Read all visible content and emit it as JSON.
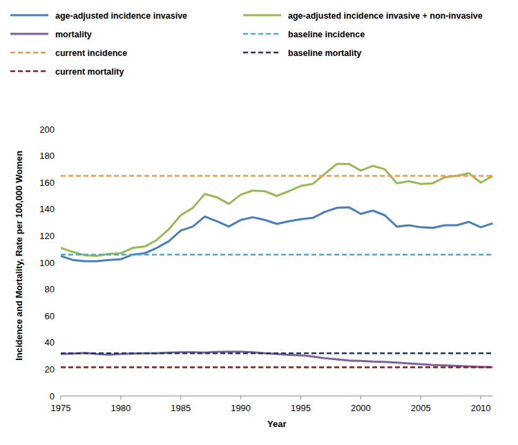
{
  "chart_data": {
    "type": "line",
    "x_label": "Year",
    "y_label": "Incidence and Mortality, Rate per 100,000 Women",
    "x": [
      1975,
      1976,
      1977,
      1978,
      1979,
      1980,
      1981,
      1982,
      1983,
      1984,
      1985,
      1986,
      1987,
      1988,
      1989,
      1990,
      1991,
      1992,
      1993,
      1994,
      1995,
      1996,
      1997,
      1998,
      1999,
      2000,
      2001,
      2002,
      2003,
      2004,
      2005,
      2006,
      2007,
      2008,
      2009,
      2010,
      2011
    ],
    "xlim": [
      1975,
      2011
    ],
    "xticks": [
      1975,
      1980,
      1985,
      1990,
      1995,
      2000,
      2005,
      2010
    ],
    "ylim": [
      0,
      200
    ],
    "yticks": [
      0,
      20,
      40,
      60,
      80,
      100,
      120,
      140,
      160,
      180,
      200
    ],
    "grid": false,
    "legend": "top",
    "series": [
      {
        "name": "age-adjusted incidence invasive",
        "color": "#4a7ebb",
        "line_style": "solid",
        "values": [
          105,
          102,
          101,
          101,
          102,
          102.5,
          106,
          107,
          111,
          116,
          124,
          127,
          134.5,
          131,
          127,
          132,
          134,
          132,
          129,
          131,
          132.5,
          133.5,
          138,
          141,
          141.5,
          136.5,
          139,
          135.5,
          127,
          128,
          126.5,
          126,
          128,
          128,
          130.5,
          126.5,
          129.5
        ]
      },
      {
        "name": "age-adjusted incidence invasive + non-invasive",
        "color": "#98b954",
        "line_style": "solid",
        "values": [
          111,
          108,
          105.5,
          105,
          106.5,
          107,
          111,
          112,
          117,
          125,
          135.5,
          141,
          151.5,
          149,
          144,
          151,
          154,
          153.5,
          150,
          153.5,
          157.5,
          159,
          166.5,
          174,
          174,
          169,
          172.5,
          170,
          159.5,
          161,
          159,
          159.5,
          164,
          165,
          167,
          160,
          165
        ]
      },
      {
        "name": "mortality",
        "color": "#7d60a0",
        "line_style": "solid",
        "values": [
          31.5,
          31.8,
          32.3,
          31.5,
          31,
          31.5,
          31.7,
          32,
          32,
          32.5,
          32.8,
          32.8,
          32.5,
          33,
          33.2,
          33.2,
          32.8,
          32,
          31.5,
          30.8,
          30.5,
          29.5,
          28.3,
          27.5,
          26.5,
          26.3,
          25.8,
          25.5,
          25,
          24.3,
          23.8,
          23.2,
          22.9,
          22.5,
          22.1,
          21.8,
          21.6
        ]
      },
      {
        "name": "baseline incidence",
        "color": "#4bacc6",
        "line_style": "dashed",
        "values": [
          106,
          106,
          106,
          106,
          106,
          106,
          106,
          106,
          106,
          106,
          106,
          106,
          106,
          106,
          106,
          106,
          106,
          106,
          106,
          106,
          106,
          106,
          106,
          106,
          106,
          106,
          106,
          106,
          106,
          106,
          106,
          106,
          106,
          106,
          106,
          106,
          106
        ]
      },
      {
        "name": "current incidence",
        "color": "#f79646",
        "line_style": "dashed",
        "values": [
          165,
          165,
          165,
          165,
          165,
          165,
          165,
          165,
          165,
          165,
          165,
          165,
          165,
          165,
          165,
          165,
          165,
          165,
          165,
          165,
          165,
          165,
          165,
          165,
          165,
          165,
          165,
          165,
          165,
          165,
          165,
          165,
          165,
          165,
          165,
          165,
          165
        ]
      },
      {
        "name": "baseline mortality",
        "color": "#1f3864",
        "line_style": "dashed",
        "values": [
          32,
          32,
          32,
          32,
          32,
          32,
          32,
          32,
          32,
          32,
          32,
          32,
          32,
          32,
          32,
          32,
          32,
          32,
          32,
          32,
          32,
          32,
          32,
          32,
          32,
          32,
          32,
          32,
          32,
          32,
          32,
          32,
          32,
          32,
          32,
          32,
          32
        ]
      },
      {
        "name": "current mortality",
        "color": "#8b1a1a",
        "line_style": "dashed",
        "values": [
          21.5,
          21.5,
          21.5,
          21.5,
          21.5,
          21.5,
          21.5,
          21.5,
          21.5,
          21.5,
          21.5,
          21.5,
          21.5,
          21.5,
          21.5,
          21.5,
          21.5,
          21.5,
          21.5,
          21.5,
          21.5,
          21.5,
          21.5,
          21.5,
          21.5,
          21.5,
          21.5,
          21.5,
          21.5,
          21.5,
          21.5,
          21.5,
          21.5,
          21.5,
          21.5,
          21.5,
          21.5
        ]
      }
    ]
  }
}
